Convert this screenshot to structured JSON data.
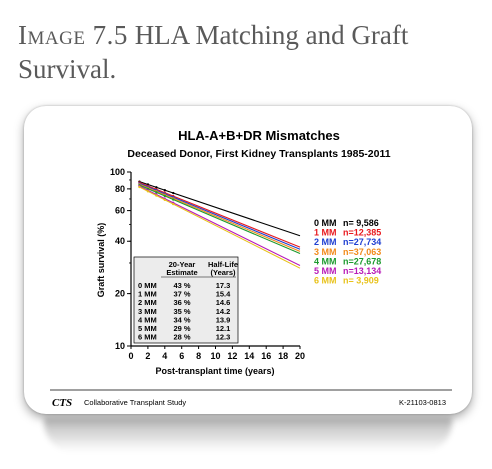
{
  "caption": {
    "label": "Image 7.5",
    "text": "HLA Matching and Graft Survival."
  },
  "footer": {
    "brand": "CTS",
    "org": "Collaborative Transplant Study",
    "code": "K-21103-0813"
  },
  "chart_data": {
    "type": "line",
    "title": "HLA-A+B+DR Mismatches",
    "subtitle": "Deceased Donor, First Kidney Transplants 1985-2011",
    "xlabel": "Post-transplant time (years)",
    "ylabel": "Graft survival (%)",
    "xlim": [
      0,
      20
    ],
    "ylim": [
      10,
      100
    ],
    "yscale": "log",
    "xticks": [
      0,
      2,
      4,
      6,
      8,
      10,
      12,
      14,
      16,
      18,
      20
    ],
    "yticks": [
      10,
      20,
      40,
      60,
      80,
      100
    ],
    "series": [
      {
        "name": "0 MM",
        "n": "n=  9,586",
        "color": "#000000",
        "half_life": "17.3",
        "estimate_20yr": "43 %",
        "values": [
          [
            1,
            88
          ],
          [
            20,
            43
          ]
        ]
      },
      {
        "name": "1 MM",
        "n": "n=12,385",
        "color": "#e8191e",
        "half_life": "15.4",
        "estimate_20yr": "37 %",
        "values": [
          [
            1,
            87
          ],
          [
            20,
            37
          ]
        ]
      },
      {
        "name": "2 MM",
        "n": "n=27,734",
        "color": "#1f3fd1",
        "half_life": "14.6",
        "estimate_20yr": "36 %",
        "values": [
          [
            1,
            86
          ],
          [
            20,
            36
          ]
        ]
      },
      {
        "name": "3 MM",
        "n": "n=37,063",
        "color": "#f28a1a",
        "half_life": "14.2",
        "estimate_20yr": "35 %",
        "values": [
          [
            1,
            85
          ],
          [
            20,
            35
          ]
        ]
      },
      {
        "name": "4 MM",
        "n": "n=27,678",
        "color": "#1c9a2e",
        "half_life": "13.9",
        "estimate_20yr": "34 %",
        "values": [
          [
            1,
            84
          ],
          [
            20,
            34
          ]
        ]
      },
      {
        "name": "5 MM",
        "n": "n=13,134",
        "color": "#b81cb8",
        "half_life": "12.1",
        "estimate_20yr": "29 %",
        "values": [
          [
            1,
            83
          ],
          [
            20,
            29
          ]
        ]
      },
      {
        "name": "6 MM",
        "n": "n=  3,909",
        "color": "#e8c21a",
        "half_life": "12.3",
        "estimate_20yr": "28 %",
        "values": [
          [
            1,
            82
          ],
          [
            20,
            28
          ]
        ]
      }
    ],
    "table": {
      "col1_header": [
        "20-Year",
        "Estimate"
      ],
      "col2_header": [
        "Half-Life",
        "(Years)"
      ]
    },
    "legend_position": "right"
  }
}
